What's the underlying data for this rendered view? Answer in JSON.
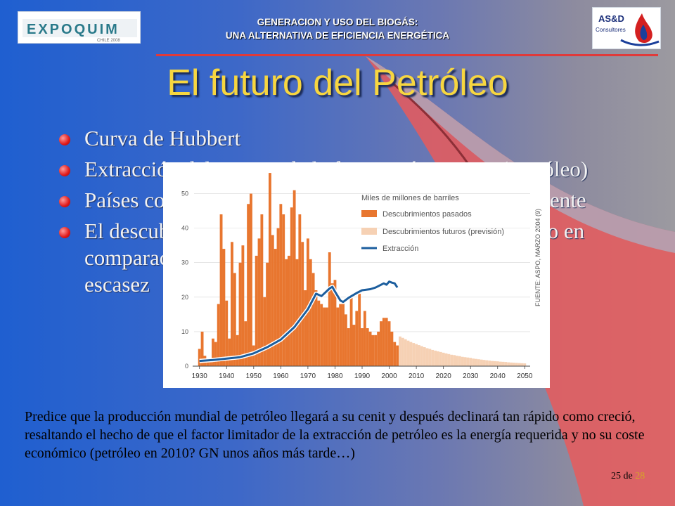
{
  "header": {
    "line1": "GENERACION  Y USO DEL BIOGÁS:",
    "line2": "UNA ALTERNATIVA DE EFICIENCIA ENERGÉTICA",
    "logo_left_text": "EXPOQUIM",
    "logo_left_sub": "CHILE 2008",
    "logo_right_text": "AS&D",
    "logo_right_sub": "Consultores"
  },
  "title": "El futuro del Petróleo",
  "bullets": [
    {
      "text": "Curva de Hubbert"
    },
    {
      "text": "Extracción del recurso de la forma más costosa (Petróleo)"
    },
    {
      "text": "Países con mayores reservas se agotan como rápidamente"
    },
    {
      "text": "El descubrimiento de nuevos pozos no es significativo en comparación a lo necesario para cubrir la inminente escasez"
    }
  ],
  "note": "Predice que la producción mundial de petróleo llegará a su cenit y después declinará tan rápido como creció, resaltando el hecho de que el factor limitador de la extracción de petróleo es la energía requerida y no su coste económico (petróleo en 2010? GN unos años más tarde…)",
  "pager": {
    "current": "25",
    "of": "de",
    "total": "28"
  },
  "colors": {
    "past": "#e8762f",
    "future": "#f6d1b4",
    "extraction": "#1c5e9e",
    "title": "#f7d640",
    "bullet": "#e01818"
  },
  "chart_data": {
    "type": "bar",
    "legend_title": "Miles de millones de barriles",
    "source": "FUENTE: ASPO, MARZO 2004 (9)",
    "ylim": [
      0,
      55
    ],
    "yticks": [
      0,
      10,
      20,
      30,
      40,
      50
    ],
    "xlim": [
      1928,
      2052
    ],
    "xticks": [
      1930,
      1940,
      1950,
      1960,
      1970,
      1980,
      1990,
      2000,
      2010,
      2020,
      2030,
      2040,
      2050
    ],
    "series": [
      {
        "name": "Descubrimientos pasados",
        "x": [
          1930,
          1931,
          1932,
          1933,
          1934,
          1935,
          1936,
          1937,
          1938,
          1939,
          1940,
          1941,
          1942,
          1943,
          1944,
          1945,
          1946,
          1947,
          1948,
          1949,
          1950,
          1951,
          1952,
          1953,
          1954,
          1955,
          1956,
          1957,
          1958,
          1959,
          1960,
          1961,
          1962,
          1963,
          1964,
          1965,
          1966,
          1967,
          1968,
          1969,
          1970,
          1971,
          1972,
          1973,
          1974,
          1975,
          1976,
          1977,
          1978,
          1979,
          1980,
          1981,
          1982,
          1983,
          1984,
          1985,
          1986,
          1987,
          1988,
          1989,
          1990,
          1991,
          1992,
          1993,
          1994,
          1995,
          1996,
          1997,
          1998,
          1999,
          2000,
          2001,
          2002,
          2003
        ],
        "values": [
          5,
          10,
          3,
          2,
          2,
          8,
          7,
          18,
          44,
          34,
          19,
          8,
          36,
          27,
          9,
          30,
          35,
          13,
          47,
          50,
          6,
          32,
          37,
          44,
          20,
          30,
          56,
          38,
          34,
          40,
          47,
          44,
          31,
          32,
          46,
          51,
          31,
          44,
          36,
          22,
          37,
          31,
          27,
          22,
          19,
          18,
          17,
          17,
          33,
          24,
          25,
          17,
          18,
          19,
          15,
          11,
          20,
          12,
          16,
          21,
          11,
          16,
          11,
          10,
          9,
          9,
          10,
          13,
          14,
          14,
          13,
          10,
          7,
          6
        ]
      },
      {
        "name": "Descubrimientos futuros (previsión)",
        "x": [
          2004,
          2005,
          2006,
          2007,
          2008,
          2009,
          2010,
          2011,
          2012,
          2013,
          2014,
          2015,
          2016,
          2017,
          2018,
          2019,
          2020,
          2021,
          2022,
          2023,
          2024,
          2025,
          2026,
          2027,
          2028,
          2029,
          2030,
          2031,
          2032,
          2033,
          2034,
          2035,
          2036,
          2037,
          2038,
          2039,
          2040,
          2041,
          2042,
          2043,
          2044,
          2045,
          2046,
          2047,
          2048,
          2049,
          2050
        ],
        "values": [
          8.6,
          8.2,
          7.8,
          7.4,
          7.0,
          6.7,
          6.4,
          6.1,
          5.8,
          5.5,
          5.2,
          5.0,
          4.7,
          4.5,
          4.3,
          4.1,
          3.9,
          3.7,
          3.5,
          3.3,
          3.2,
          3.0,
          2.9,
          2.7,
          2.6,
          2.5,
          2.4,
          2.2,
          2.1,
          2.0,
          1.9,
          1.8,
          1.7,
          1.6,
          1.5,
          1.45,
          1.4,
          1.3,
          1.25,
          1.2,
          1.1,
          1.05,
          1.0,
          0.95,
          0.9,
          0.85,
          0.8
        ]
      },
      {
        "name": "Extracción",
        "x": [
          1930,
          1935,
          1940,
          1945,
          1950,
          1955,
          1960,
          1965,
          1970,
          1973,
          1975,
          1978,
          1979,
          1980,
          1982,
          1983,
          1985,
          1988,
          1990,
          1993,
          1995,
          1998,
          1999,
          2000,
          2001,
          2002,
          2003
        ],
        "values": [
          1.5,
          1.8,
          2.2,
          2.6,
          3.7,
          5.5,
          7.7,
          11.3,
          16.5,
          21.0,
          20.3,
          22.5,
          23.0,
          21.6,
          19.0,
          18.6,
          19.8,
          21.2,
          22.0,
          22.3,
          22.8,
          24.0,
          23.6,
          24.5,
          24.2,
          24.0,
          22.8
        ]
      }
    ]
  }
}
